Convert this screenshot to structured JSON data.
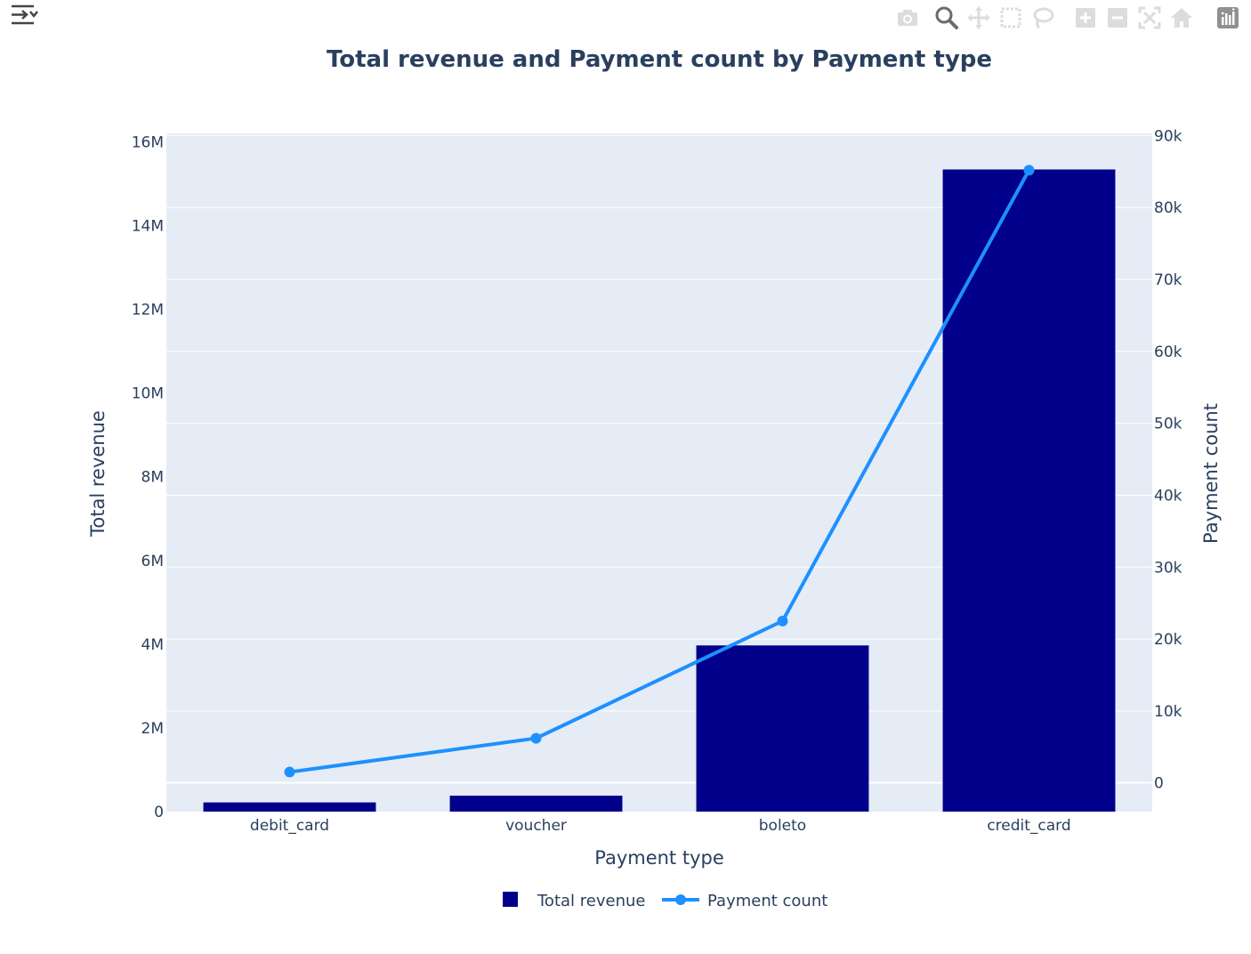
{
  "toolbar": {
    "icons": [
      "sidebar-toggle-icon",
      "camera-icon",
      "zoom-icon",
      "pan-icon",
      "box-select-icon",
      "lasso-icon",
      "zoom-in-icon",
      "zoom-out-icon",
      "autoscale-icon",
      "reset-axes-icon",
      "plotly-logo-icon"
    ]
  },
  "colors": {
    "plot_bg": "#e5ecf6",
    "grid": "#ffffff",
    "bar": "#00008b",
    "line": "#1e90ff",
    "text": "#2a3f5f"
  },
  "chart_data": {
    "type": "bar",
    "title": "Total revenue and Payment count by Payment type",
    "xlabel": "Payment type",
    "ylabel": "Total revenue",
    "y2label": "Payment count",
    "categories": [
      "debit_card",
      "voucher",
      "boleto",
      "credit_card"
    ],
    "ylim": [
      0,
      16200000
    ],
    "y2lim": [
      -4000,
      90300
    ],
    "y_ticks": [
      0,
      2000000,
      4000000,
      6000000,
      8000000,
      10000000,
      12000000,
      14000000,
      16000000
    ],
    "y_tick_labels": [
      "0",
      "2M",
      "4M",
      "6M",
      "8M",
      "10M",
      "12M",
      "14M",
      "16M"
    ],
    "y2_ticks": [
      0,
      10000,
      20000,
      30000,
      40000,
      50000,
      60000,
      70000,
      80000,
      90000
    ],
    "y2_tick_labels": [
      "0",
      "10k",
      "20k",
      "30k",
      "40k",
      "50k",
      "60k",
      "70k",
      "80k",
      "90k"
    ],
    "series": [
      {
        "name": "Total revenue",
        "type": "bar",
        "axis": "y",
        "values": [
          220000,
          380000,
          3970000,
          15340000
        ]
      },
      {
        "name": "Payment count",
        "type": "line",
        "axis": "y2",
        "values": [
          1500,
          6200,
          22500,
          85200
        ]
      }
    ],
    "legend": "bottom-center",
    "grid": true
  }
}
